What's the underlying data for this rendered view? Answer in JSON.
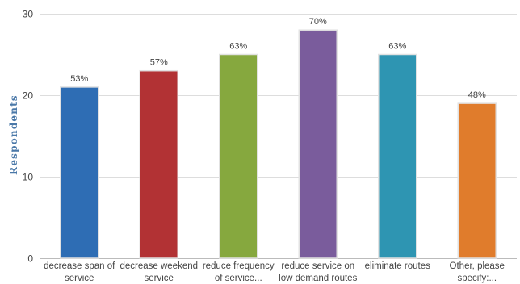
{
  "chart_data": {
    "type": "bar",
    "title": "",
    "xlabel": "",
    "ylabel": "Respondents",
    "ylim": [
      0,
      30
    ],
    "yticks": [
      0,
      10,
      20,
      30
    ],
    "grid": true,
    "categories": [
      [
        "decrease span of",
        "service"
      ],
      [
        "decrease weekend",
        "service"
      ],
      [
        "reduce frequency",
        "of service..."
      ],
      [
        "reduce service on",
        "low demand routes"
      ],
      [
        "eliminate routes"
      ],
      [
        "Other, please",
        "specify:..."
      ]
    ],
    "values": [
      21,
      23,
      25,
      28,
      25,
      19
    ],
    "data_labels": [
      "53%",
      "57%",
      "63%",
      "70%",
      "63%",
      "48%"
    ],
    "colors": [
      "#2e6db4",
      "#b23234",
      "#86a83e",
      "#7a5c9c",
      "#2e95b2",
      "#e07c2c"
    ]
  }
}
